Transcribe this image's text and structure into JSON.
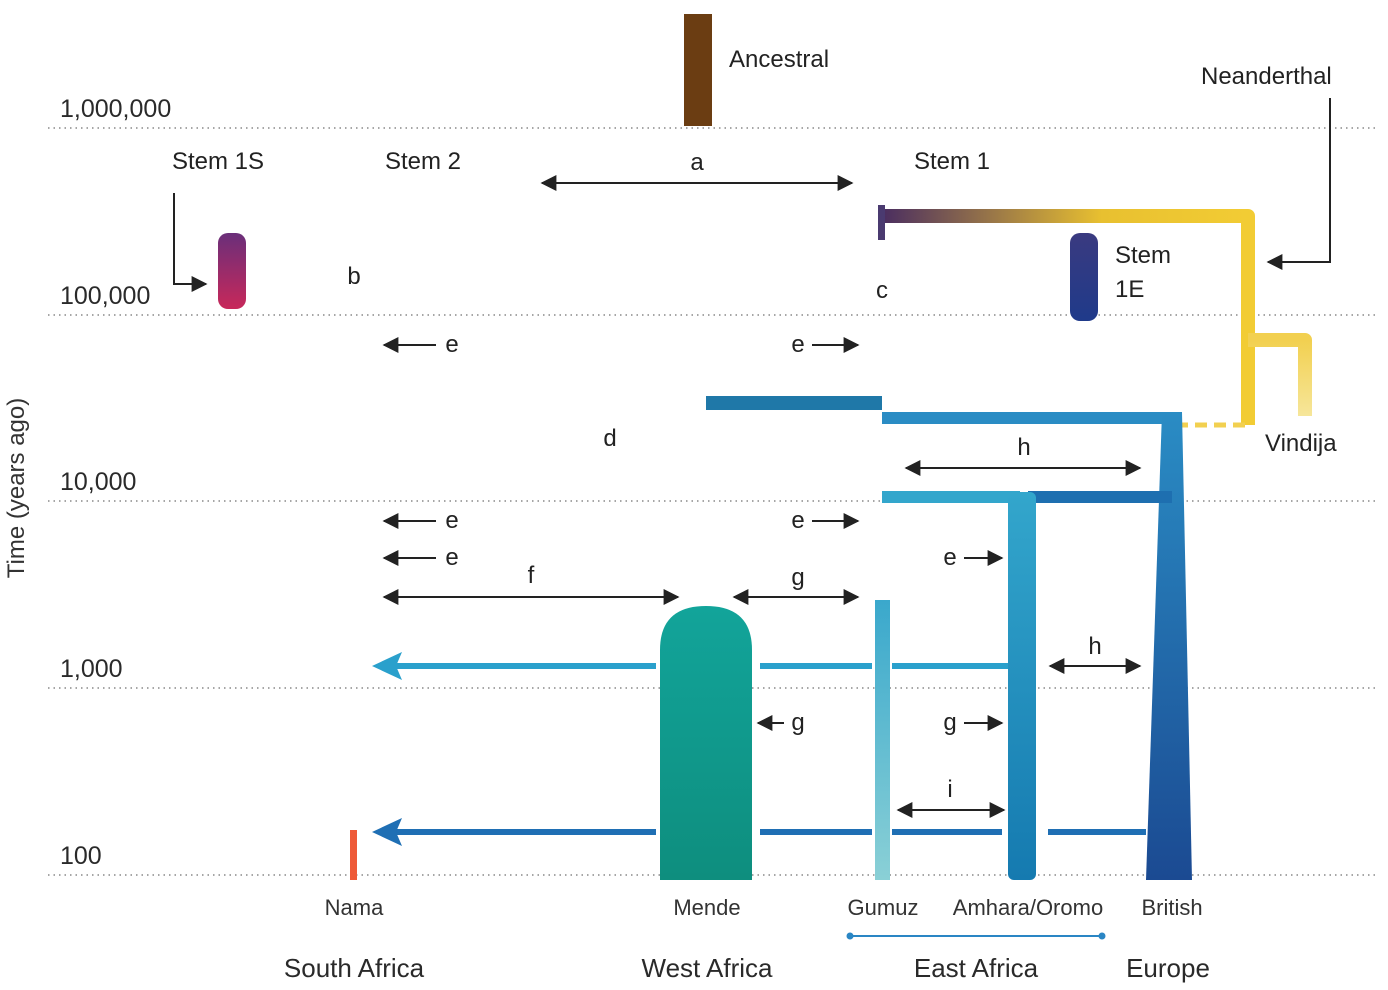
{
  "axis": {
    "label": "Time (years ago)",
    "ticks": [
      "1,000,000",
      "100,000",
      "10,000",
      "1,000",
      "100"
    ]
  },
  "lineages": {
    "ancestral": "Ancestral",
    "neanderthal": "Neanderthal",
    "stem1s": "Stem 1S",
    "stem2": "Stem 2",
    "stem1": "Stem 1",
    "stem1e_line1": "Stem",
    "stem1e_line2": "1E",
    "vindija": "Vindija"
  },
  "events": {
    "a": "a",
    "b": "b",
    "c": "c",
    "d": "d",
    "e1": "e",
    "e2": "e",
    "e3": "e",
    "e4": "e",
    "e5": "e",
    "e6": "e",
    "f": "f",
    "g1": "g",
    "g2": "g",
    "g3": "g",
    "h1": "h",
    "h2": "h",
    "i": "i"
  },
  "populations": [
    "Nama",
    "Mende",
    "Gumuz",
    "Amhara/Oromo",
    "British"
  ],
  "regions": [
    "South Africa",
    "West Africa",
    "East Africa",
    "Europe"
  ],
  "colors": {
    "ancestral": "#6b3d12",
    "stem2": "#f0901c",
    "stem1s": "#6a2f7a",
    "nama": "#e8503a",
    "mende": "#109f94",
    "gumuz": "#3aa8cc",
    "amhara": "#1f8fbe",
    "british": "#1d4f95",
    "neanderthal": "#f0cc30",
    "migration_recent": "#2f86c4"
  }
}
